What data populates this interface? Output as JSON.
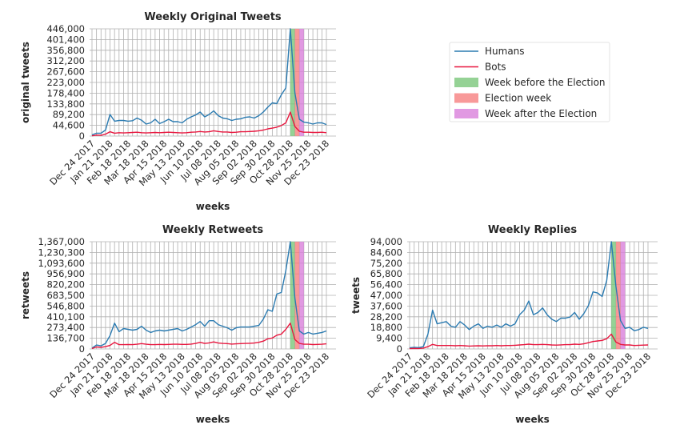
{
  "colors": {
    "humans": "#2b7bb1",
    "bots": "#e8173f",
    "week_before": "#7bc77b",
    "election_week": "#f67f7f",
    "week_after": "#da7fdb",
    "grid": "#b0b0b0"
  },
  "legend": {
    "placement": "top-right",
    "items": [
      {
        "label": "Humans",
        "kind": "line",
        "color_key": "humans"
      },
      {
        "label": "Bots",
        "kind": "line",
        "color_key": "bots"
      },
      {
        "label": "Week before the Election",
        "kind": "patch",
        "color_key": "week_before"
      },
      {
        "label": "Election week",
        "kind": "patch",
        "color_key": "election_week"
      },
      {
        "label": "Week after the Election",
        "kind": "patch",
        "color_key": "week_after"
      }
    ]
  },
  "chart_data": [
    {
      "type": "line",
      "title": "Weekly Original Tweets",
      "xlabel": "weeks",
      "ylabel": "original tweets",
      "grid": true,
      "ylim": [
        0,
        446000
      ],
      "yticks": [
        "0",
        "44,600",
        "89,200",
        "133,800",
        "178,400",
        "223,000",
        "267,600",
        "312,200",
        "356,800",
        "401,400",
        "446,000"
      ],
      "xticks": [
        "Dec 24 2017",
        "Jan 21 2018",
        "Feb 18 2018",
        "Mar 18 2018",
        "Apr 15 2018",
        "May 13 2018",
        "Jun 10 2018",
        "Jul 08 2018",
        "Aug 05 2018",
        "Sep 02 2018",
        "Sep 30 2018",
        "Oct 28 2018",
        "Nov 25 2018",
        "Dec 23 2018"
      ],
      "highlight_weeks": {
        "week_before": 44.5,
        "election_week": 45.5,
        "week_after": 46.5
      },
      "series": [
        {
          "name": "Humans",
          "color_key": "humans",
          "values": [
            5000,
            12000,
            12000,
            25000,
            90000,
            62000,
            65000,
            65000,
            62000,
            64000,
            75000,
            66000,
            50000,
            55000,
            70000,
            52000,
            60000,
            70000,
            60000,
            60000,
            55000,
            70000,
            80000,
            88000,
            100000,
            80000,
            90000,
            105000,
            85000,
            75000,
            72000,
            65000,
            70000,
            72000,
            78000,
            80000,
            75000,
            85000,
            100000,
            120000,
            138000,
            135000,
            172000,
            200000,
            446000,
            180000,
            70000,
            58000,
            55000,
            50000,
            55000,
            55000,
            48000
          ]
        },
        {
          "name": "Bots",
          "color_key": "bots",
          "values": [
            1000,
            4000,
            3000,
            8000,
            18000,
            12000,
            14000,
            13000,
            14000,
            15000,
            16000,
            14000,
            13000,
            14000,
            15000,
            14000,
            15000,
            16000,
            15000,
            14000,
            13000,
            14000,
            16000,
            17000,
            19000,
            17000,
            18000,
            22000,
            19000,
            17000,
            17000,
            15000,
            16000,
            18000,
            18000,
            19000,
            20000,
            22000,
            25000,
            30000,
            33000,
            37000,
            44000,
            55000,
            100000,
            40000,
            20000,
            16000,
            16000,
            15000,
            15000,
            16000,
            14000
          ]
        }
      ]
    },
    {
      "type": "line",
      "title": "Weekly Retweets",
      "xlabel": "weeks",
      "ylabel": "retweets",
      "grid": true,
      "ylim": [
        0,
        1367000
      ],
      "yticks": [
        "0",
        "136,700",
        "273,400",
        "410,100",
        "546,800",
        "683,500",
        "820,200",
        "956,900",
        "1,093,600",
        "1,230,300",
        "1,367,000"
      ],
      "xticks": [
        "Dec 24 2017",
        "Jan 21 2018",
        "Feb 18 2018",
        "Mar 18 2018",
        "Apr 15 2018",
        "May 13 2018",
        "Jun 10 2018",
        "Jul 08 2018",
        "Aug 05 2018",
        "Sep 02 2018",
        "Sep 30 2018",
        "Oct 28 2018",
        "Nov 25 2018",
        "Dec 23 2018"
      ],
      "highlight_weeks": {
        "week_before": 44.5,
        "election_week": 45.5,
        "week_after": 46.5
      },
      "series": [
        {
          "name": "Humans",
          "color_key": "humans",
          "values": [
            10000,
            50000,
            40000,
            70000,
            170000,
            330000,
            220000,
            260000,
            250000,
            240000,
            250000,
            290000,
            240000,
            210000,
            230000,
            240000,
            230000,
            240000,
            250000,
            260000,
            230000,
            250000,
            280000,
            310000,
            350000,
            290000,
            360000,
            360000,
            310000,
            290000,
            270000,
            240000,
            270000,
            280000,
            280000,
            280000,
            290000,
            300000,
            380000,
            500000,
            480000,
            700000,
            720000,
            1000000,
            1367000,
            650000,
            230000,
            190000,
            210000,
            190000,
            200000,
            210000,
            230000
          ]
        },
        {
          "name": "Bots",
          "color_key": "bots",
          "values": [
            5000,
            25000,
            20000,
            30000,
            45000,
            85000,
            55000,
            55000,
            56000,
            55000,
            60000,
            68000,
            60000,
            55000,
            55000,
            58000,
            56000,
            58000,
            60000,
            60000,
            58000,
            58000,
            62000,
            70000,
            85000,
            70000,
            78000,
            90000,
            75000,
            70000,
            68000,
            62000,
            65000,
            68000,
            70000,
            72000,
            75000,
            85000,
            100000,
            130000,
            140000,
            175000,
            190000,
            250000,
            330000,
            120000,
            70000,
            60000,
            60000,
            56000,
            58000,
            60000,
            65000
          ]
        }
      ]
    },
    {
      "type": "line",
      "title": "Weekly Replies",
      "xlabel": "weeks",
      "ylabel": "tweets",
      "grid": true,
      "ylim": [
        0,
        94000
      ],
      "yticks": [
        "0",
        "9,400",
        "18,800",
        "28,200",
        "37,600",
        "47,000",
        "56,400",
        "65,800",
        "75,200",
        "84,600",
        "94,000"
      ],
      "xticks": [
        "Dec 24 2017",
        "Jan 21 2018",
        "Feb 18 2018",
        "Mar 18 2018",
        "Apr 15 2018",
        "May 13 2018",
        "Jun 10 2018",
        "Jul 08 2018",
        "Aug 05 2018",
        "Sep 02 2018",
        "Sep 30 2018",
        "Oct 28 2018",
        "Nov 25 2018",
        "Dec 23 2018"
      ],
      "highlight_weeks": {
        "week_before": 44.5,
        "election_week": 45.5,
        "week_after": 46.5
      },
      "series": [
        {
          "name": "Humans",
          "color_key": "humans",
          "values": [
            1000,
            1500,
            1200,
            2000,
            13000,
            34000,
            22000,
            23000,
            24000,
            20000,
            19000,
            24000,
            21000,
            17000,
            20000,
            22000,
            18000,
            20000,
            19000,
            21000,
            19000,
            22000,
            20000,
            22000,
            30000,
            34000,
            42000,
            30000,
            32000,
            36000,
            30000,
            26000,
            24000,
            27000,
            27000,
            28000,
            32000,
            26000,
            31000,
            38000,
            50000,
            49000,
            46000,
            60000,
            94000,
            55000,
            25000,
            18000,
            19000,
            16000,
            17000,
            19000,
            18000
          ]
        },
        {
          "name": "Bots",
          "color_key": "bots",
          "values": [
            300,
            500,
            400,
            800,
            2000,
            4000,
            3000,
            3000,
            3000,
            3000,
            2800,
            3000,
            2800,
            2500,
            2700,
            2800,
            2700,
            2800,
            2800,
            3000,
            2800,
            3000,
            3000,
            3200,
            3500,
            3800,
            4200,
            3800,
            3800,
            4000,
            3800,
            3500,
            3400,
            3600,
            3800,
            3800,
            4200,
            4000,
            4500,
            5500,
            6500,
            7000,
            7500,
            9000,
            13000,
            6000,
            4000,
            3500,
            3500,
            3000,
            3200,
            3400,
            3500
          ]
        }
      ]
    }
  ]
}
